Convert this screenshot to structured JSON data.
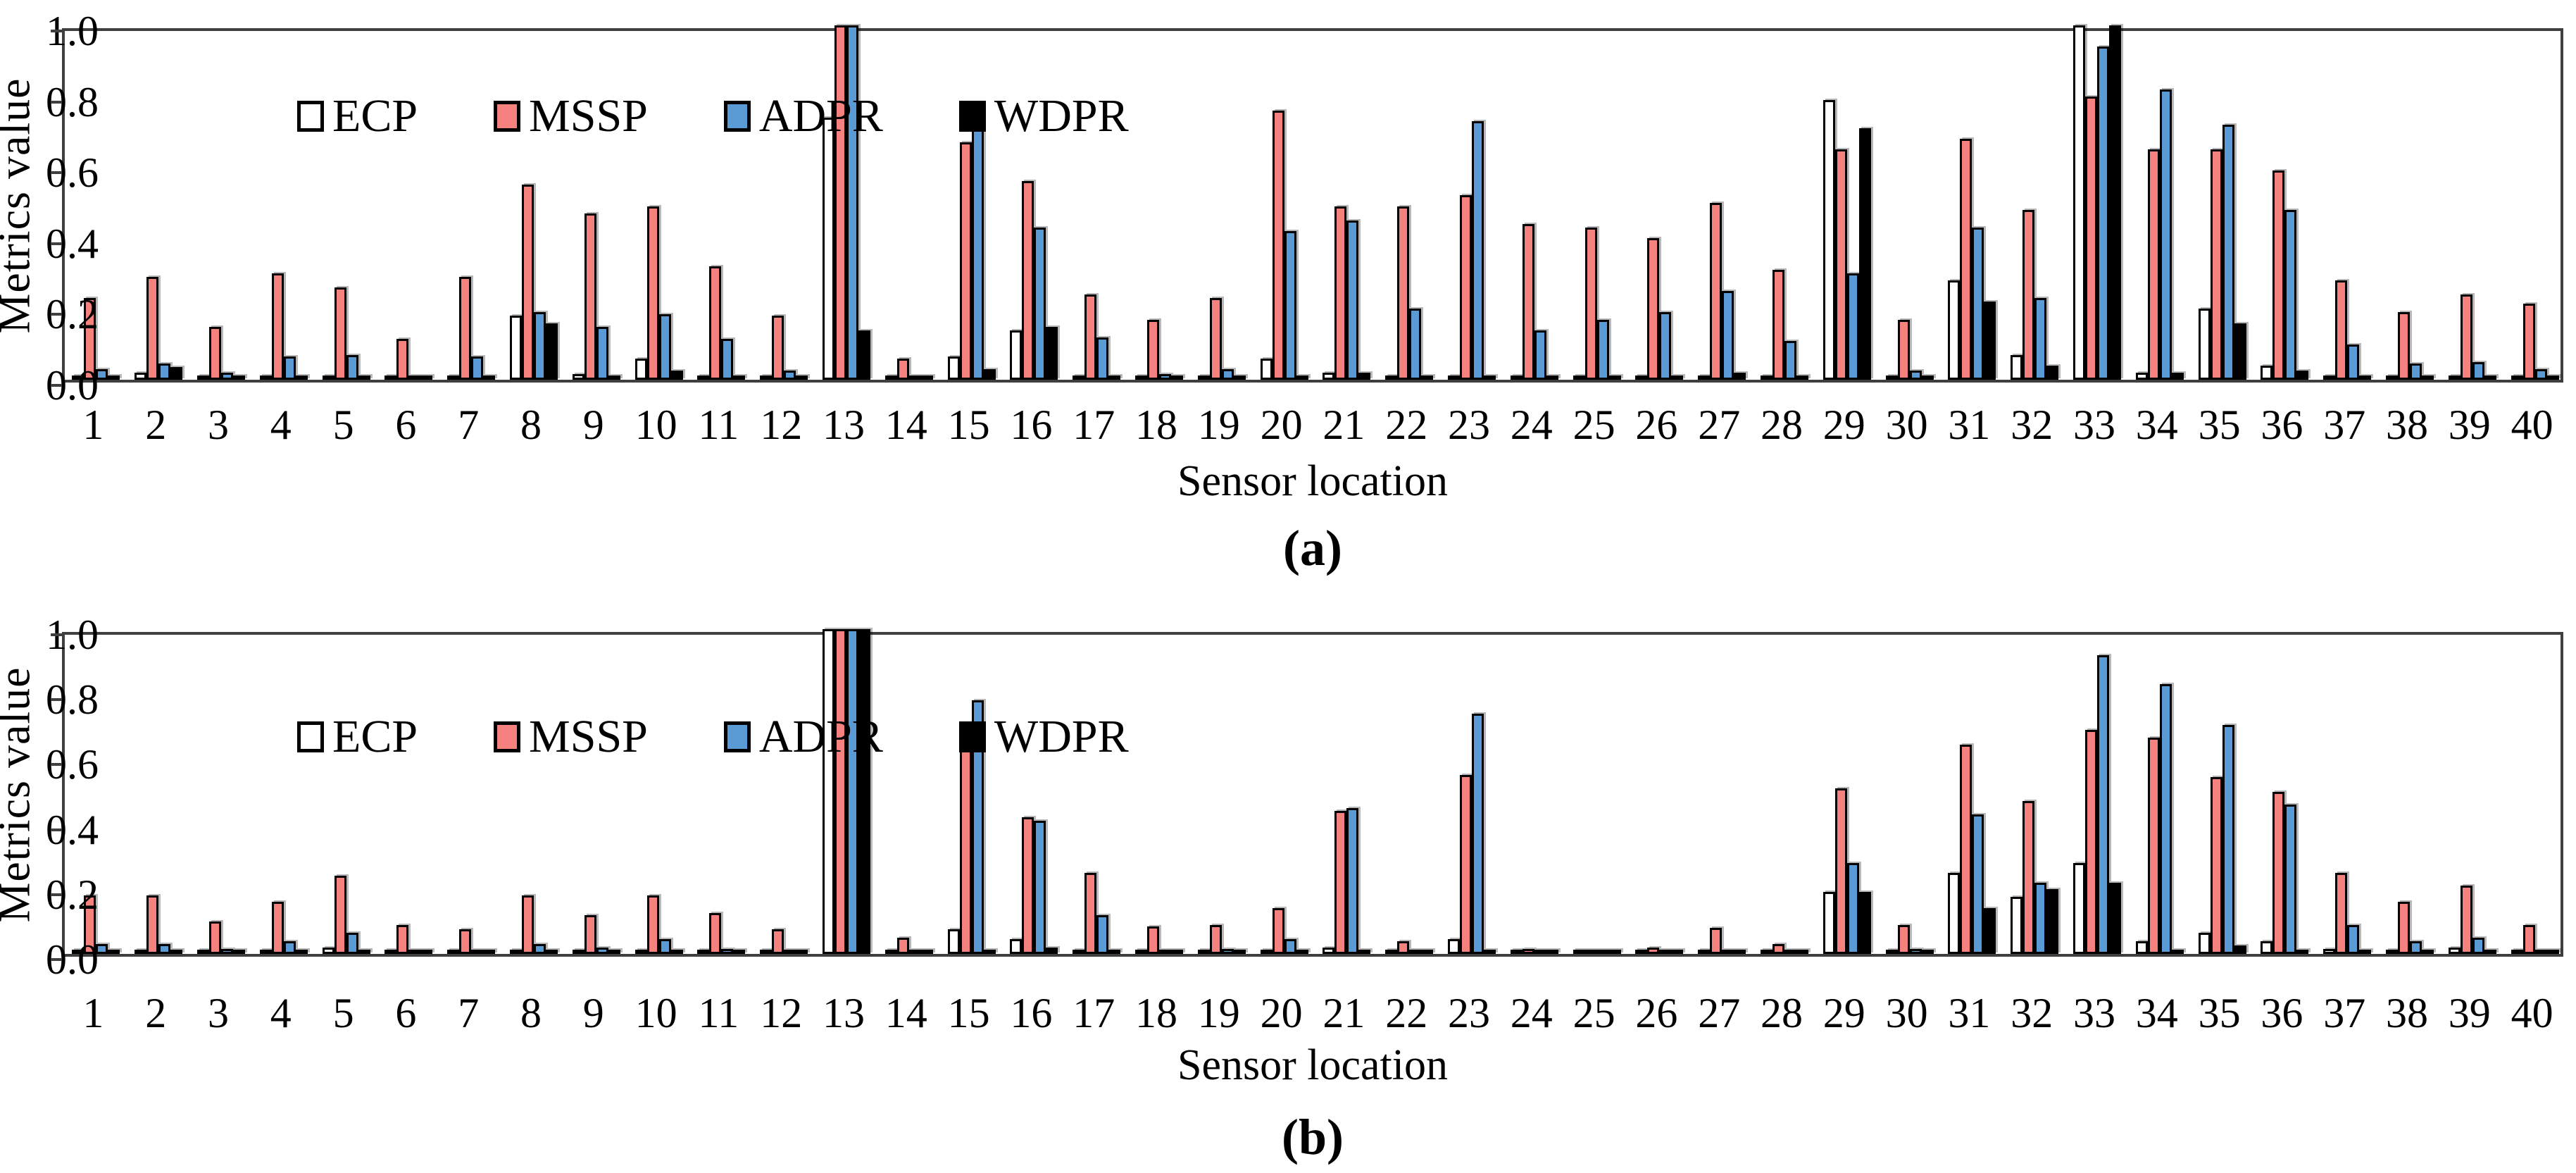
{
  "page": {
    "background": "#ffffff"
  },
  "colors": {
    "ecp": "#ffffff",
    "mssp": "#f5827e",
    "adpr": "#5b9bd5",
    "wdpr": "#000000",
    "frame": "#3f3f3f"
  },
  "chart_data": [
    {
      "type": "bar",
      "panel": "a",
      "caption": "(a)",
      "xlabel": "Sensor location",
      "ylabel": "Metrics value",
      "ylim": [
        0,
        1
      ],
      "yticks": [
        "1.0",
        "0.8",
        "0.6",
        "0.4",
        "0.2",
        "0.0"
      ],
      "grid": false,
      "legend_position": "top-left",
      "categories": [
        "1",
        "2",
        "3",
        "4",
        "5",
        "6",
        "7",
        "8",
        "9",
        "10",
        "11",
        "12",
        "13",
        "14",
        "15",
        "16",
        "17",
        "18",
        "19",
        "20",
        "21",
        "22",
        "23",
        "24",
        "25",
        "26",
        "27",
        "28",
        "29",
        "30",
        "31",
        "32",
        "33",
        "34",
        "35",
        "36",
        "37",
        "38",
        "39",
        "40"
      ],
      "series": [
        {
          "name": "ECP",
          "color_key": "ecp",
          "values": [
            0.005,
            0.02,
            0.005,
            0.005,
            0.005,
            0.005,
            0.005,
            0.18,
            0.015,
            0.06,
            0.005,
            0.005,
            0.74,
            0.005,
            0.065,
            0.14,
            0.005,
            0.005,
            0.005,
            0.06,
            0.02,
            0.005,
            0.01,
            0.005,
            0.005,
            0.005,
            0.005,
            0.005,
            0.79,
            0.005,
            0.28,
            0.07,
            1.0,
            0.02,
            0.2,
            0.04,
            0.005,
            0.005,
            0.005,
            0.005
          ]
        },
        {
          "name": "MSSP",
          "color_key": "mssp",
          "values": [
            0.23,
            0.29,
            0.15,
            0.3,
            0.26,
            0.115,
            0.29,
            0.55,
            0.47,
            0.49,
            0.32,
            0.18,
            1.0,
            0.06,
            0.67,
            0.56,
            0.24,
            0.17,
            0.23,
            0.76,
            0.49,
            0.49,
            0.52,
            0.44,
            0.43,
            0.4,
            0.5,
            0.31,
            0.65,
            0.17,
            0.68,
            0.48,
            0.8,
            0.65,
            0.65,
            0.59,
            0.28,
            0.19,
            0.24,
            0.215
          ]
        },
        {
          "name": "ADPR",
          "color_key": "adpr",
          "values": [
            0.03,
            0.045,
            0.02,
            0.065,
            0.07,
            0.005,
            0.065,
            0.19,
            0.15,
            0.185,
            0.115,
            0.025,
            1.0,
            0.005,
            0.78,
            0.43,
            0.12,
            0.015,
            0.03,
            0.42,
            0.45,
            0.2,
            0.73,
            0.14,
            0.17,
            0.19,
            0.25,
            0.11,
            0.3,
            0.025,
            0.43,
            0.23,
            0.94,
            0.82,
            0.72,
            0.48,
            0.1,
            0.045,
            0.05,
            0.03
          ]
        },
        {
          "name": "WDPR",
          "color_key": "wdpr",
          "values": [
            0.01,
            0.035,
            0.005,
            0.005,
            0.005,
            0.01,
            0.005,
            0.16,
            0.005,
            0.025,
            0.005,
            0.005,
            0.14,
            0.01,
            0.03,
            0.15,
            0.005,
            0.005,
            0.005,
            0.01,
            0.02,
            0.005,
            0.005,
            0.005,
            0.005,
            0.005,
            0.02,
            0.005,
            0.71,
            0.005,
            0.22,
            0.04,
            1.0,
            0.02,
            0.16,
            0.025,
            0.005,
            0.005,
            0.005,
            0.005
          ]
        }
      ]
    },
    {
      "type": "bar",
      "panel": "b",
      "caption": "(b)",
      "xlabel": "Sensor location",
      "ylabel": "Metrics value",
      "ylim": [
        0,
        1
      ],
      "yticks": [
        "1.0",
        "0.8",
        "0.6",
        "0.4",
        "0.2",
        "0.0"
      ],
      "grid": false,
      "legend_position": "top-left",
      "categories": [
        "1",
        "2",
        "3",
        "4",
        "5",
        "6",
        "7",
        "8",
        "9",
        "10",
        "11",
        "12",
        "13",
        "14",
        "15",
        "16",
        "17",
        "18",
        "19",
        "20",
        "21",
        "22",
        "23",
        "24",
        "25",
        "26",
        "27",
        "28",
        "29",
        "30",
        "31",
        "32",
        "33",
        "34",
        "35",
        "36",
        "37",
        "38",
        "39",
        "40"
      ],
      "series": [
        {
          "name": "ECP",
          "color_key": "ecp",
          "values": [
            0.005,
            0.005,
            0.005,
            0.005,
            0.02,
            0.005,
            0.005,
            0.005,
            0.005,
            0.005,
            0.005,
            0.005,
            1.0,
            0.005,
            0.075,
            0.045,
            0.005,
            0.005,
            0.005,
            0.005,
            0.02,
            0.005,
            0.045,
            0.005,
            0.005,
            0.005,
            0.005,
            0.005,
            0.19,
            0.005,
            0.25,
            0.175,
            0.28,
            0.04,
            0.065,
            0.04,
            0.015,
            0.005,
            0.02,
            0.005
          ]
        },
        {
          "name": "MSSP",
          "color_key": "mssp",
          "values": [
            0.18,
            0.18,
            0.1,
            0.16,
            0.24,
            0.09,
            0.075,
            0.18,
            0.12,
            0.18,
            0.125,
            0.075,
            1.0,
            0.05,
            0.63,
            0.42,
            0.25,
            0.085,
            0.09,
            0.14,
            0.44,
            0.04,
            0.55,
            0.015,
            0.005,
            0.02,
            0.08,
            0.03,
            0.51,
            0.09,
            0.645,
            0.47,
            0.69,
            0.665,
            0.545,
            0.5,
            0.25,
            0.16,
            0.21,
            0.09
          ]
        },
        {
          "name": "ADPR",
          "color_key": "adpr",
          "values": [
            0.03,
            0.03,
            0.015,
            0.04,
            0.065,
            0.005,
            0.005,
            0.03,
            0.02,
            0.045,
            0.015,
            0.005,
            1.0,
            0.005,
            0.78,
            0.41,
            0.12,
            0.005,
            0.015,
            0.045,
            0.45,
            0.005,
            0.74,
            0.005,
            0.005,
            0.005,
            0.005,
            0.005,
            0.28,
            0.015,
            0.43,
            0.22,
            0.92,
            0.83,
            0.705,
            0.46,
            0.09,
            0.04,
            0.05,
            0.01
          ]
        },
        {
          "name": "WDPR",
          "color_key": "wdpr",
          "values": [
            0.005,
            0.005,
            0.005,
            0.005,
            0.005,
            0.01,
            0.01,
            0.005,
            0.005,
            0.005,
            0.005,
            0.005,
            1.0,
            0.01,
            0.005,
            0.02,
            0.005,
            0.01,
            0.005,
            0.005,
            0.005,
            0.005,
            0.005,
            0.005,
            0.01,
            0.005,
            0.01,
            0.005,
            0.19,
            0.005,
            0.14,
            0.2,
            0.22,
            0.005,
            0.025,
            0.01,
            0.005,
            0.005,
            0.005,
            0.005
          ]
        }
      ]
    }
  ]
}
